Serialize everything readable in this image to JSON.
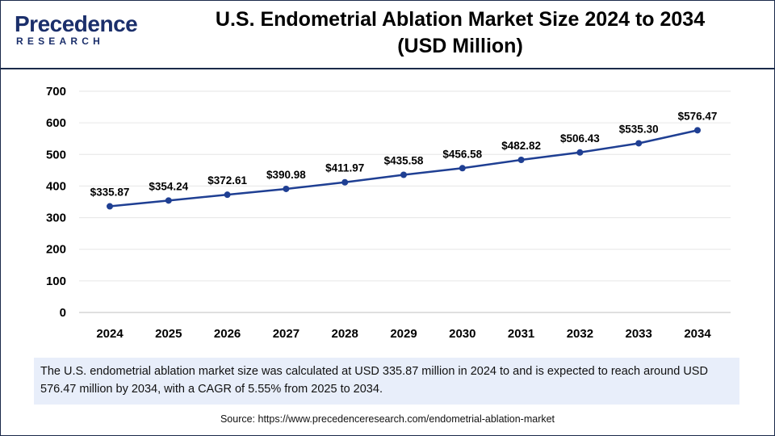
{
  "brand": {
    "line1": "Precedence",
    "line2": "RESEARCH"
  },
  "title_line1": "U.S. Endometrial Ablation Market Size 2024 to 2034",
  "title_line2": "(USD Million)",
  "colors": {
    "line": "#1f3f93",
    "brand": "#1b2f6b",
    "summary_bg": "#e8eefa"
  },
  "chart_data": {
    "type": "line",
    "title": "U.S. Endometrial Ablation Market Size 2024 to 2034 (USD Million)",
    "xlabel": "",
    "ylabel": "",
    "categories": [
      "2024",
      "2025",
      "2026",
      "2027",
      "2028",
      "2029",
      "2030",
      "2031",
      "2032",
      "2033",
      "2034"
    ],
    "series": [
      {
        "name": "U.S. Endometrial Ablation Market Size",
        "values": [
          335.87,
          354.24,
          372.61,
          390.98,
          411.97,
          435.58,
          456.58,
          482.82,
          506.43,
          535.3,
          576.47
        ],
        "labels": [
          "$335.87",
          "$354.24",
          "$372.61",
          "$390.98",
          "$411.97",
          "$435.58",
          "$456.58",
          "$482.82",
          "$506.43",
          "$535.30",
          "$576.47"
        ]
      }
    ],
    "ylim": [
      0,
      700
    ],
    "yticks": [
      0,
      100,
      200,
      300,
      400,
      500,
      600,
      700
    ],
    "grid": true
  },
  "summary": "The U.S. endometrial ablation market size was calculated at USD 335.87 million in 2024 to and is expected to reach around USD 576.47 million by 2034, with a CAGR of 5.55% from 2025 to 2034.",
  "source": "Source: https://www.precedenceresearch.com/endometrial-ablation-market"
}
